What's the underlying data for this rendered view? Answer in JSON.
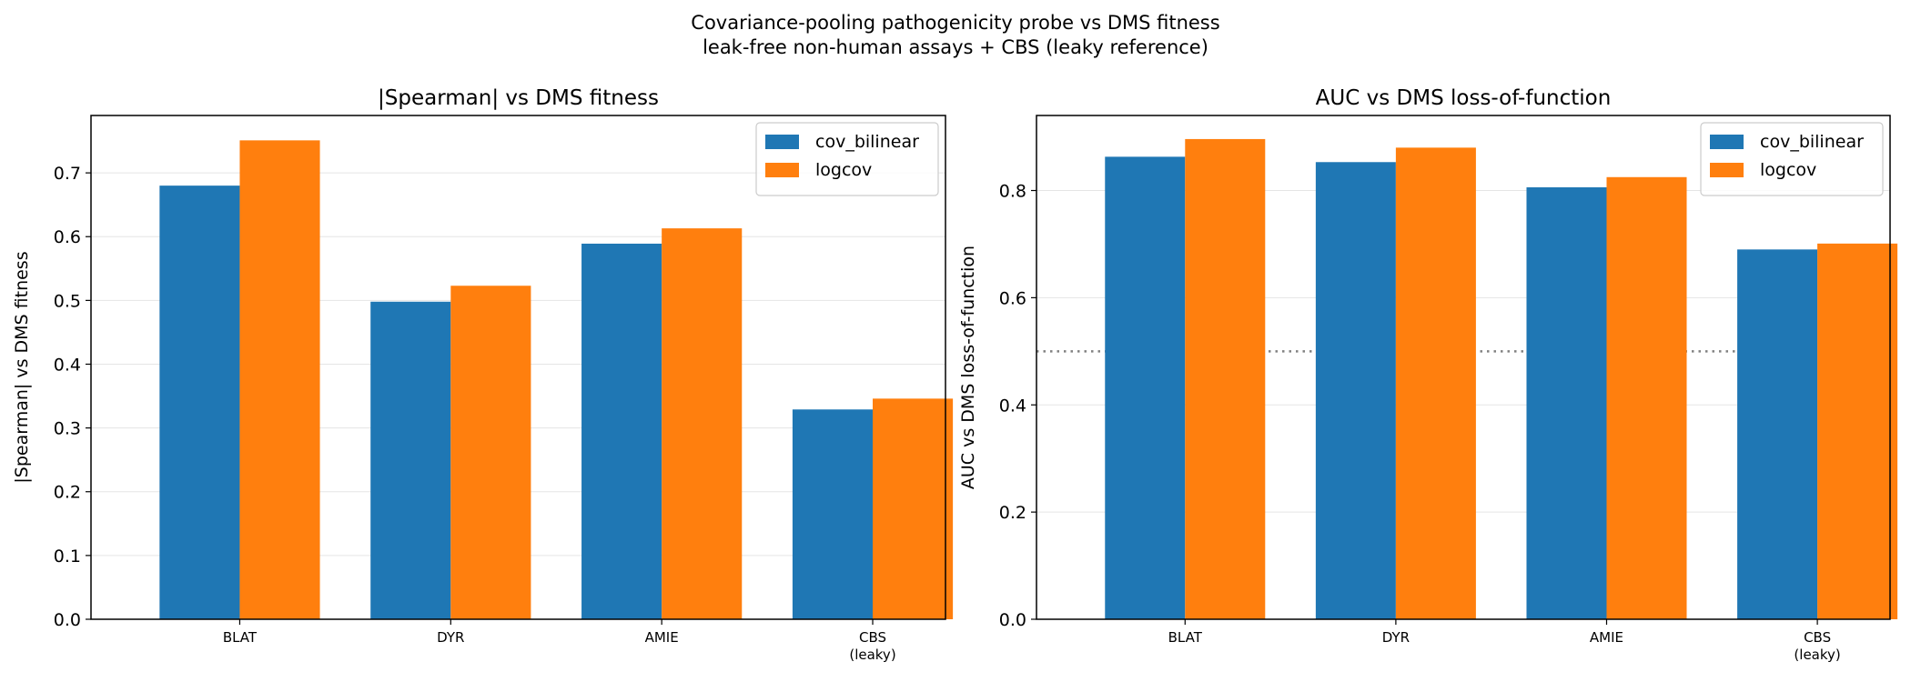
{
  "suptitle": {
    "line1": "Covariance-pooling pathogenicity probe vs DMS fitness",
    "line2": "leak-free non-human assays + CBS (leaky reference)"
  },
  "colors": {
    "cov_bilinear": "#1f77b4",
    "logcov": "#ff7f0e",
    "grid": "#e5e5e5",
    "refline": "#808080"
  },
  "chart_data": [
    {
      "type": "bar",
      "title": "|Spearman| vs DMS fitness",
      "xlabel": "",
      "ylabel": "|Spearman| vs DMS fitness",
      "categories": [
        "BLAT",
        "DYR",
        "AMIE",
        "CBS\n(leaky)"
      ],
      "series": [
        {
          "name": "cov_bilinear",
          "values": [
            0.68,
            0.498,
            0.589,
            0.329
          ]
        },
        {
          "name": "logcov",
          "values": [
            0.751,
            0.523,
            0.613,
            0.346
          ]
        }
      ],
      "ylim": [
        0,
        0.79
      ],
      "yticks": [
        "0.0",
        "0.1",
        "0.2",
        "0.3",
        "0.4",
        "0.5",
        "0.6",
        "0.7"
      ],
      "grid": "horizontal",
      "legend": "top-right"
    },
    {
      "type": "bar",
      "title": "AUC vs DMS loss-of-function",
      "xlabel": "",
      "ylabel": "AUC vs DMS loss-of-function",
      "categories": [
        "BLAT",
        "DYR",
        "AMIE",
        "CBS\n(leaky)"
      ],
      "series": [
        {
          "name": "cov_bilinear",
          "values": [
            0.863,
            0.853,
            0.806,
            0.69
          ]
        },
        {
          "name": "logcov",
          "values": [
            0.896,
            0.88,
            0.825,
            0.701
          ]
        }
      ],
      "ylim": [
        0,
        0.94
      ],
      "yticks": [
        "0.0",
        "0.2",
        "0.4",
        "0.6",
        "0.8"
      ],
      "reference_line": 0.5,
      "grid": "horizontal",
      "legend": "top-right"
    }
  ]
}
